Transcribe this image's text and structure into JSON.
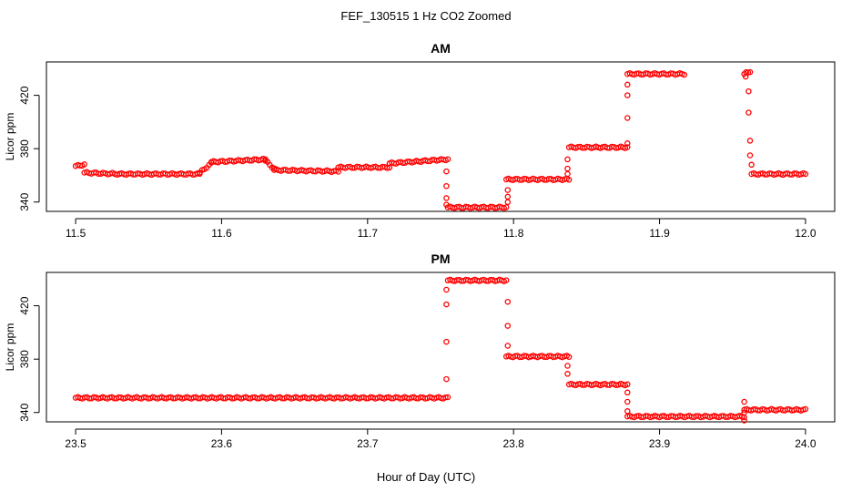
{
  "figure": {
    "title": "FEF_130515  1 Hz CO2 Zoomed",
    "xlabel": "Hour of Day (UTC)"
  },
  "colors": {
    "points": "#ff0000",
    "axis": "#000000",
    "background": "#ffffff"
  },
  "chart_data": [
    {
      "type": "scatter",
      "title": "AM",
      "xlabel": "",
      "ylabel": "Licor ppm",
      "xlim": [
        11.48,
        12.02
      ],
      "ylim": [
        333,
        445
      ],
      "xticks": [
        11.5,
        11.6,
        11.7,
        11.8,
        11.9,
        12.0
      ],
      "xtick_labels": [
        "11.5",
        "11.6",
        "11.7",
        "11.8",
        "11.9",
        "12.0"
      ],
      "yticks": [
        340,
        380,
        420
      ],
      "ytick_labels": [
        "340",
        "380",
        "420"
      ],
      "grid": false,
      "legend": false,
      "marker": "open-circle",
      "series": [
        {
          "segments": [
            {
              "x0": 11.5,
              "x1": 11.506,
              "y0": 367,
              "y1": 368
            },
            {
              "x0": 11.506,
              "x1": 11.53,
              "y0": 362,
              "y1": 361
            },
            {
              "x0": 11.53,
              "x1": 11.585,
              "y0": 361,
              "y1": 361
            },
            {
              "x0": 11.585,
              "x1": 11.593,
              "y0": 362,
              "y1": 369
            },
            {
              "x0": 11.593,
              "x1": 11.63,
              "y0": 370,
              "y1": 372
            },
            {
              "x0": 11.63,
              "x1": 11.636,
              "y0": 371,
              "y1": 365
            },
            {
              "x0": 11.636,
              "x1": 11.68,
              "y0": 364,
              "y1": 363
            },
            {
              "x0": 11.68,
              "x1": 11.715,
              "y0": 366,
              "y1": 366
            },
            {
              "x0": 11.715,
              "x1": 11.755,
              "y0": 369,
              "y1": 372
            },
            {
              "x0": 11.755,
              "x1": 11.795,
              "y0": 336,
              "y1": 336
            },
            {
              "x0": 11.795,
              "x1": 11.838,
              "y0": 357,
              "y1": 357
            },
            {
              "x0": 11.838,
              "x1": 11.878,
              "y0": 381,
              "y1": 381
            },
            {
              "x0": 11.878,
              "x1": 11.917,
              "y0": 436,
              "y1": 436
            },
            {
              "x0": 11.958,
              "x1": 11.962,
              "y0": 436,
              "y1": 438
            },
            {
              "x0": 11.963,
              "x1": 12.0,
              "y0": 361,
              "y1": 361
            }
          ],
          "points": [
            {
              "x": 11.754,
              "y": 363
            },
            {
              "x": 11.754,
              "y": 352
            },
            {
              "x": 11.754,
              "y": 343
            },
            {
              "x": 11.754,
              "y": 338
            },
            {
              "x": 11.796,
              "y": 340
            },
            {
              "x": 11.796,
              "y": 344
            },
            {
              "x": 11.796,
              "y": 349
            },
            {
              "x": 11.837,
              "y": 361
            },
            {
              "x": 11.837,
              "y": 365
            },
            {
              "x": 11.837,
              "y": 372
            },
            {
              "x": 11.878,
              "y": 384
            },
            {
              "x": 11.878,
              "y": 403
            },
            {
              "x": 11.878,
              "y": 420
            },
            {
              "x": 11.878,
              "y": 428
            },
            {
              "x": 11.959,
              "y": 434
            },
            {
              "x": 11.961,
              "y": 423
            },
            {
              "x": 11.961,
              "y": 407
            },
            {
              "x": 11.962,
              "y": 386
            },
            {
              "x": 11.962,
              "y": 375
            },
            {
              "x": 11.963,
              "y": 368
            }
          ]
        }
      ]
    },
    {
      "type": "scatter",
      "title": "PM",
      "xlabel": "",
      "ylabel": "Licor ppm",
      "xlim": [
        23.48,
        24.02
      ],
      "ylim": [
        333,
        445
      ],
      "xticks": [
        23.5,
        23.6,
        23.7,
        23.8,
        23.9,
        24.0
      ],
      "xtick_labels": [
        "23.5",
        "23.6",
        "23.7",
        "23.8",
        "23.9",
        "24.0"
      ],
      "yticks": [
        340,
        380,
        420
      ],
      "ytick_labels": [
        "340",
        "380",
        "420"
      ],
      "grid": false,
      "legend": false,
      "marker": "open-circle",
      "series": [
        {
          "segments": [
            {
              "x0": 23.5,
              "x1": 23.755,
              "y0": 351,
              "y1": 351
            },
            {
              "x0": 23.755,
              "x1": 23.795,
              "y0": 439,
              "y1": 439
            },
            {
              "x0": 23.795,
              "x1": 23.838,
              "y0": 382,
              "y1": 382
            },
            {
              "x0": 23.838,
              "x1": 23.878,
              "y0": 361,
              "y1": 361
            },
            {
              "x0": 23.878,
              "x1": 23.958,
              "y0": 337,
              "y1": 337
            },
            {
              "x0": 23.958,
              "x1": 24.0,
              "y0": 342,
              "y1": 342
            }
          ],
          "points": [
            {
              "x": 23.754,
              "y": 365
            },
            {
              "x": 23.754,
              "y": 393
            },
            {
              "x": 23.754,
              "y": 421
            },
            {
              "x": 23.754,
              "y": 432
            },
            {
              "x": 23.796,
              "y": 423
            },
            {
              "x": 23.796,
              "y": 405
            },
            {
              "x": 23.796,
              "y": 390
            },
            {
              "x": 23.837,
              "y": 375
            },
            {
              "x": 23.837,
              "y": 369
            },
            {
              "x": 23.878,
              "y": 355
            },
            {
              "x": 23.878,
              "y": 348
            },
            {
              "x": 23.878,
              "y": 341
            },
            {
              "x": 23.958,
              "y": 334
            },
            {
              "x": 23.958,
              "y": 340
            },
            {
              "x": 23.958,
              "y": 348
            }
          ]
        }
      ]
    }
  ]
}
